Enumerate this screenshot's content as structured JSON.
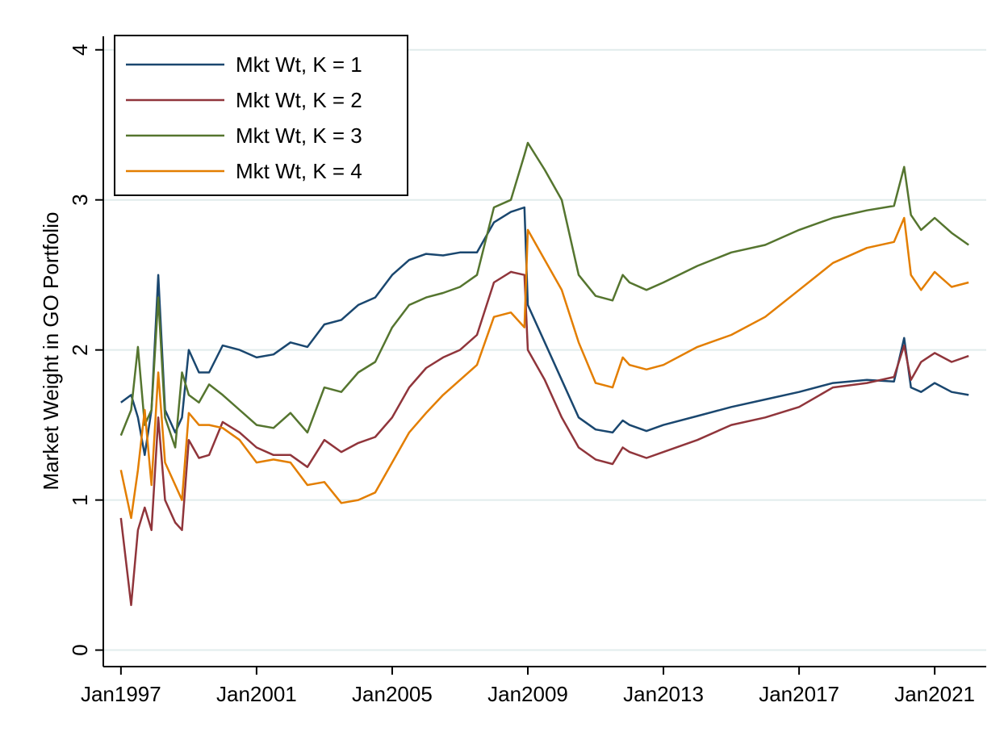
{
  "chart_data": {
    "type": "line",
    "y_label": "Market Weight in GO Portfolio",
    "x": [
      1997.0,
      1997.3,
      1997.5,
      1997.7,
      1997.9,
      1998.1,
      1998.3,
      1998.6,
      1998.8,
      1999.0,
      1999.3,
      1999.6,
      2000.0,
      2000.5,
      2001.0,
      2001.5,
      2002.0,
      2002.5,
      2003.0,
      2003.5,
      2004.0,
      2004.5,
      2005.0,
      2005.5,
      2006.0,
      2006.5,
      2007.0,
      2007.5,
      2008.0,
      2008.5,
      2008.9,
      2009.0,
      2009.5,
      2010.0,
      2010.5,
      2011.0,
      2011.5,
      2011.8,
      2012.0,
      2012.5,
      2013.0,
      2014.0,
      2015.0,
      2016.0,
      2017.0,
      2018.0,
      2019.0,
      2019.8,
      2020.1,
      2020.3,
      2020.6,
      2021.0,
      2021.5,
      2022.0
    ],
    "series": [
      {
        "name": "Mkt Wt, K = 1",
        "color": "#1a476f",
        "values": [
          1.65,
          1.7,
          1.55,
          1.3,
          1.6,
          2.5,
          1.6,
          1.45,
          1.55,
          2.0,
          1.85,
          1.85,
          2.03,
          2.0,
          1.95,
          1.97,
          2.05,
          2.02,
          2.17,
          2.2,
          2.3,
          2.35,
          2.5,
          2.6,
          2.64,
          2.63,
          2.65,
          2.65,
          2.85,
          2.92,
          2.95,
          2.3,
          2.05,
          1.8,
          1.55,
          1.47,
          1.45,
          1.53,
          1.5,
          1.46,
          1.5,
          1.56,
          1.62,
          1.67,
          1.72,
          1.78,
          1.8,
          1.79,
          2.08,
          1.75,
          1.72,
          1.78,
          1.72,
          1.7
        ]
      },
      {
        "name": "Mkt Wt, K = 2",
        "color": "#90353b",
        "values": [
          0.88,
          0.3,
          0.8,
          0.95,
          0.8,
          1.55,
          1.0,
          0.85,
          0.8,
          1.4,
          1.28,
          1.3,
          1.52,
          1.45,
          1.35,
          1.3,
          1.3,
          1.22,
          1.4,
          1.32,
          1.38,
          1.42,
          1.55,
          1.75,
          1.88,
          1.95,
          2.0,
          2.1,
          2.45,
          2.52,
          2.5,
          2.0,
          1.8,
          1.55,
          1.35,
          1.27,
          1.24,
          1.35,
          1.32,
          1.28,
          1.32,
          1.4,
          1.5,
          1.55,
          1.62,
          1.75,
          1.78,
          1.82,
          2.03,
          1.8,
          1.92,
          1.98,
          1.92,
          1.96
        ]
      },
      {
        "name": "Mkt Wt, K = 3",
        "color": "#55752f",
        "values": [
          1.43,
          1.6,
          2.02,
          1.5,
          1.6,
          2.35,
          1.55,
          1.35,
          1.85,
          1.7,
          1.65,
          1.77,
          1.7,
          1.6,
          1.5,
          1.48,
          1.58,
          1.45,
          1.75,
          1.72,
          1.85,
          1.92,
          2.15,
          2.3,
          2.35,
          2.38,
          2.42,
          2.5,
          2.95,
          3.0,
          3.3,
          3.38,
          3.2,
          3.0,
          2.5,
          2.36,
          2.33,
          2.5,
          2.45,
          2.4,
          2.45,
          2.56,
          2.65,
          2.7,
          2.8,
          2.88,
          2.93,
          2.96,
          3.22,
          2.9,
          2.8,
          2.88,
          2.78,
          2.7
        ]
      },
      {
        "name": "Mkt Wt, K = 4",
        "color": "#e37e00",
        "values": [
          1.2,
          0.88,
          1.2,
          1.6,
          1.1,
          1.85,
          1.25,
          1.1,
          1.0,
          1.58,
          1.5,
          1.5,
          1.48,
          1.4,
          1.25,
          1.27,
          1.25,
          1.1,
          1.12,
          0.98,
          1.0,
          1.05,
          1.25,
          1.45,
          1.58,
          1.7,
          1.8,
          1.9,
          2.22,
          2.25,
          2.15,
          2.8,
          2.6,
          2.4,
          2.05,
          1.78,
          1.75,
          1.95,
          1.9,
          1.87,
          1.9,
          2.02,
          2.1,
          2.22,
          2.4,
          2.58,
          2.68,
          2.72,
          2.88,
          2.5,
          2.4,
          2.52,
          2.42,
          2.45
        ]
      }
    ],
    "xlim": [
      1996.48,
      2022.52
    ],
    "xticks": [
      {
        "value": 1997,
        "label": "Jan1997"
      },
      {
        "value": 2001,
        "label": "Jan2001"
      },
      {
        "value": 2005,
        "label": "Jan2005"
      },
      {
        "value": 2009,
        "label": "Jan2009"
      },
      {
        "value": 2013,
        "label": "Jan2013"
      },
      {
        "value": 2017,
        "label": "Jan2017"
      },
      {
        "value": 2021,
        "label": "Jan2021"
      }
    ],
    "ylim": [
      -0.11,
      4.09
    ],
    "yticks": [
      0,
      1,
      2,
      3,
      4
    ],
    "grid": true,
    "legend": "upper left"
  }
}
